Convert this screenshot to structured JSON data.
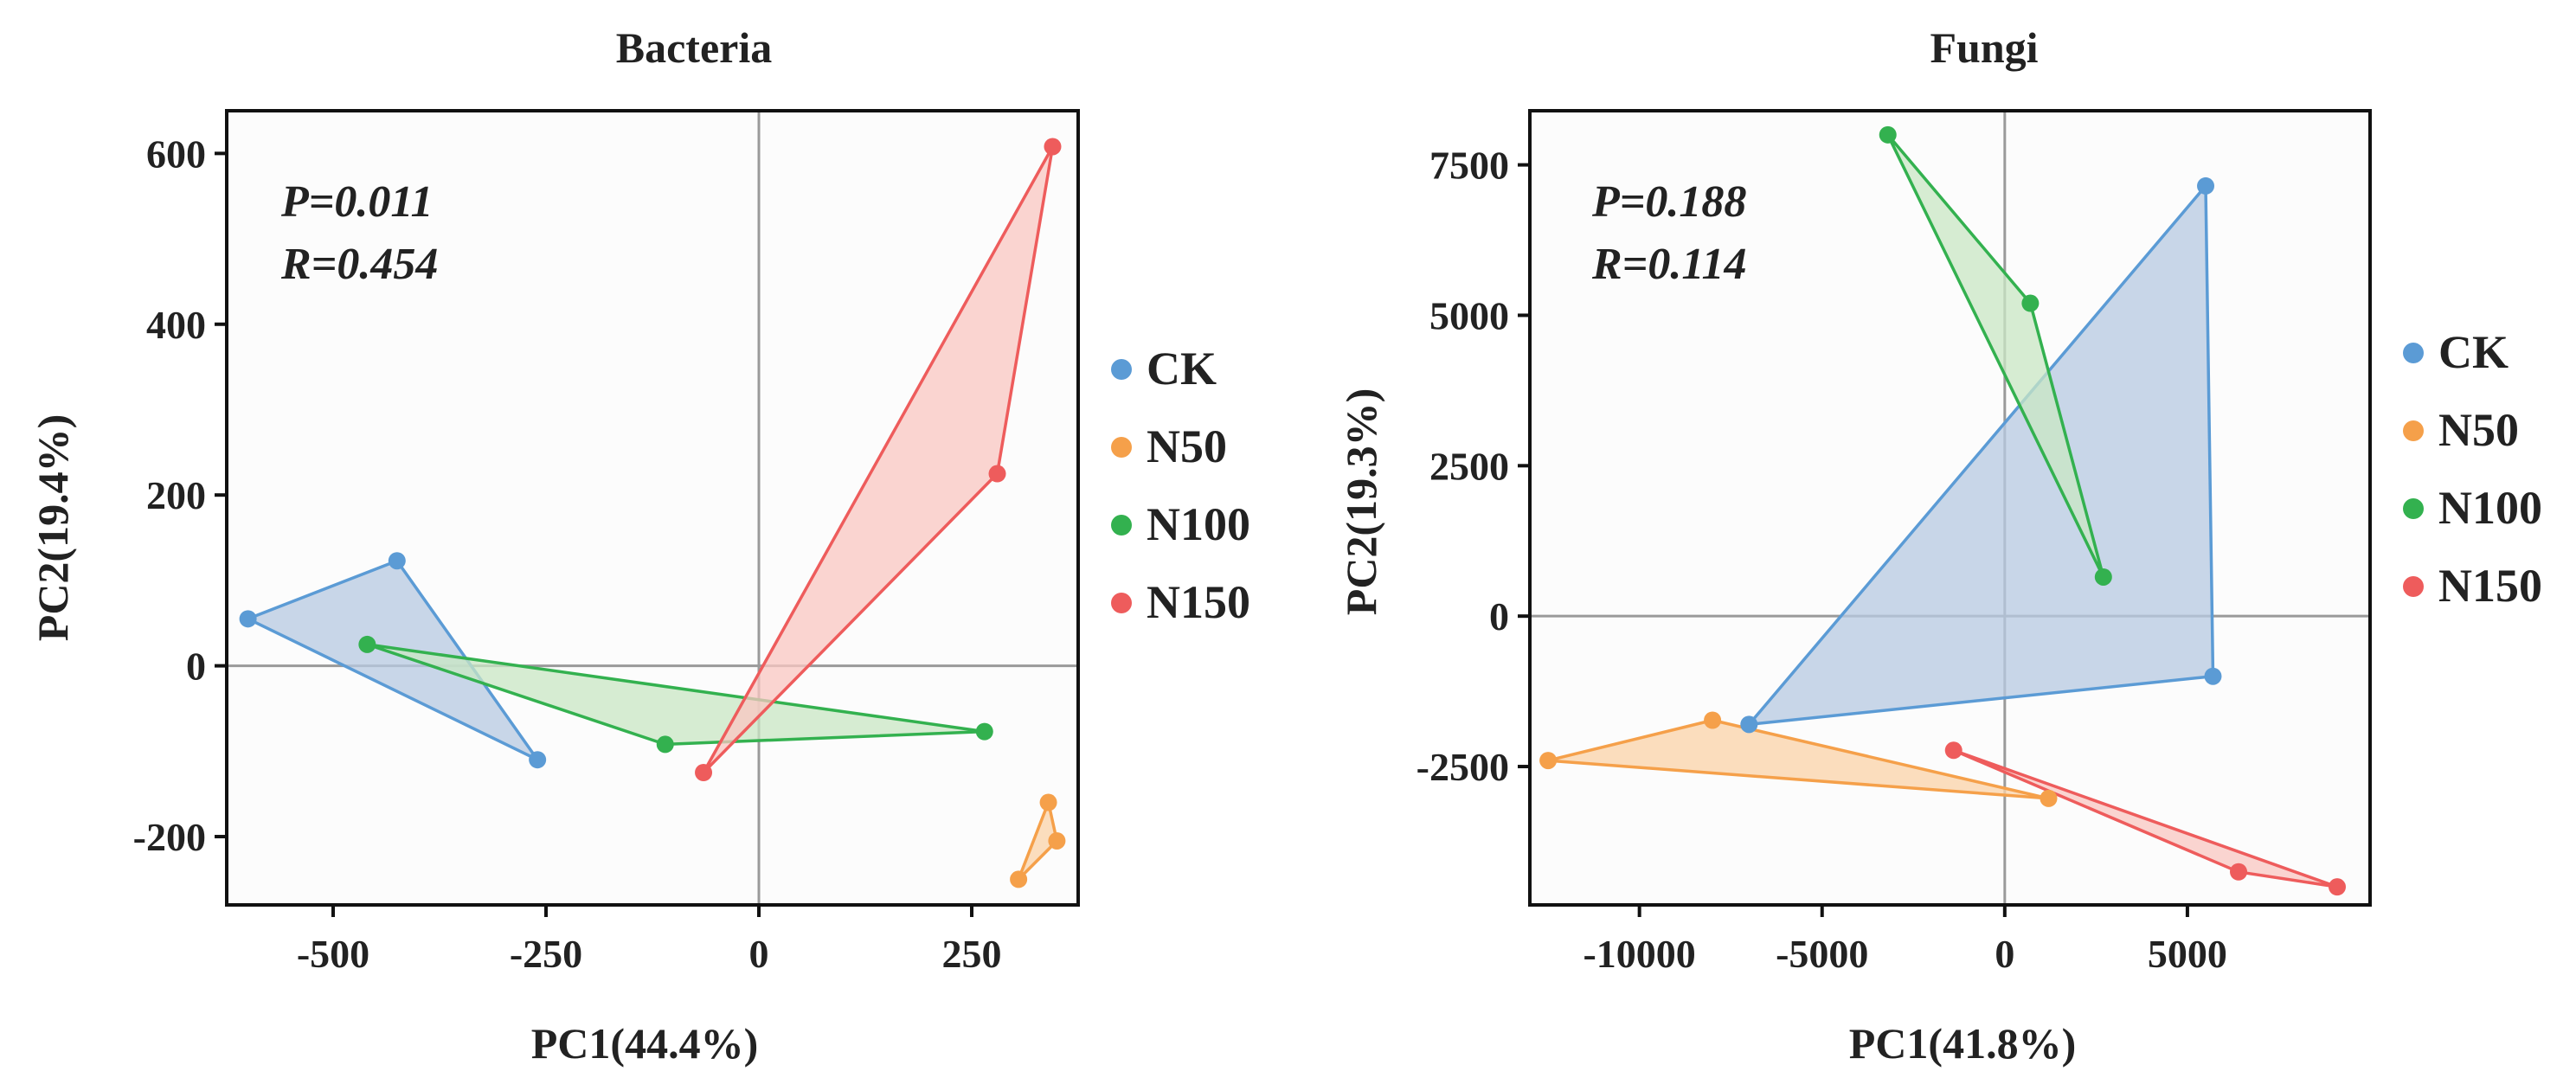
{
  "chart_data": [
    {
      "type": "scatter",
      "title": "Bacteria",
      "xlabel": "PC1(44.4%)",
      "ylabel": "PC2(19.4%)",
      "xlim": [
        -625,
        375
      ],
      "ylim": [
        -280,
        650
      ],
      "xticks": [
        -500,
        -250,
        0,
        250
      ],
      "xtick_labels": [
        "-500",
        "-250",
        "0",
        "250"
      ],
      "yticks": [
        -200,
        0,
        200,
        400,
        600
      ],
      "ytick_labels": [
        "-200",
        "0",
        "200",
        "400",
        "600"
      ],
      "stats": [
        "P=0.011",
        "R=0.454"
      ],
      "legend_position": "right",
      "series": [
        {
          "name": "CK",
          "color": "#5b9bd5",
          "fill": "#b7c9e2",
          "points": [
            [
              -600,
              55
            ],
            [
              -425,
              123
            ],
            [
              -260,
              -110
            ]
          ]
        },
        {
          "name": "N50",
          "color": "#f5a04a",
          "fill": "#fbd3a8",
          "points": [
            [
              340,
              -160
            ],
            [
              350,
              -205
            ],
            [
              305,
              -250
            ]
          ]
        },
        {
          "name": "N100",
          "color": "#33b14f",
          "fill": "#c9e7c4",
          "points": [
            [
              -460,
              25
            ],
            [
              -110,
              -92
            ],
            [
              265,
              -77
            ]
          ]
        },
        {
          "name": "N150",
          "color": "#ee5c5c",
          "fill": "#f9c7c2",
          "points": [
            [
              345,
              608
            ],
            [
              280,
              225
            ],
            [
              -65,
              -125
            ]
          ]
        }
      ]
    },
    {
      "type": "scatter",
      "title": "Fungi",
      "xlabel": "PC1(41.8%)",
      "ylabel": "PC2(19.3%)",
      "xlim": [
        -13000,
        10000
      ],
      "ylim": [
        -4800,
        8400
      ],
      "xticks": [
        -10000,
        -5000,
        0,
        5000
      ],
      "xtick_labels": [
        "-10000",
        "-5000",
        "0",
        "5000"
      ],
      "yticks": [
        -2500,
        0,
        2500,
        5000,
        7500
      ],
      "ytick_labels": [
        "-2500",
        "0",
        "2500",
        "5000",
        "7500"
      ],
      "stats": [
        "P=0.188",
        "R=0.114"
      ],
      "legend_position": "right",
      "series": [
        {
          "name": "CK",
          "color": "#5b9bd5",
          "fill": "#b7c9e2",
          "points": [
            [
              5500,
              7150
            ],
            [
              5700,
              -1000
            ],
            [
              -7000,
              -1800
            ]
          ]
        },
        {
          "name": "N50",
          "color": "#f5a04a",
          "fill": "#fbd3a8",
          "points": [
            [
              -8000,
              -1730
            ],
            [
              1200,
              -3030
            ],
            [
              -12500,
              -2400
            ]
          ]
        },
        {
          "name": "N100",
          "color": "#33b14f",
          "fill": "#c9e7c4",
          "points": [
            [
              -3200,
              8000
            ],
            [
              700,
              5200
            ],
            [
              2700,
              650
            ]
          ]
        },
        {
          "name": "N150",
          "color": "#ee5c5c",
          "fill": "#f9c7c2",
          "points": [
            [
              -1400,
              -2230
            ],
            [
              6400,
              -4250
            ],
            [
              9100,
              -4500
            ]
          ]
        }
      ]
    }
  ]
}
